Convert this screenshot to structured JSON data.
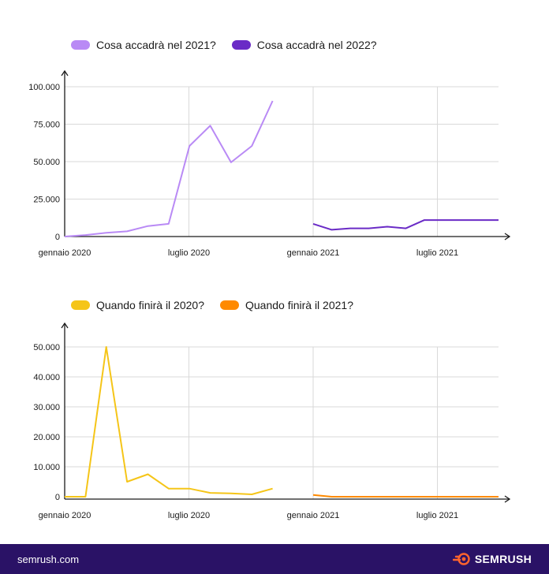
{
  "colors": {
    "series_2021": "#b98af5",
    "series_2022": "#6a2bc6",
    "series_fine2020": "#f5c518",
    "series_fine2021": "#ff8a00",
    "grid": "#d9d9d9",
    "axis": "#1b1b1b",
    "footer_bg": "#2a1266",
    "brand_accent": "#ff642d"
  },
  "footer": {
    "site": "semrush.com",
    "brand": "SEMRUSH",
    "brand_icon": "semrush-flame-icon"
  },
  "chart_data": [
    {
      "type": "line",
      "title": "",
      "xlabel": "",
      "ylabel": "",
      "x_ticks": [
        "gennaio 2020",
        "luglio 2020",
        "gennaio 2021",
        "luglio 2021"
      ],
      "y_ticks": [
        "0",
        "25.000",
        "50.000",
        "75.000",
        "100.000"
      ],
      "ylim": [
        0,
        100000
      ],
      "grid": true,
      "legend_position": "top-left",
      "series": [
        {
          "name": "Cosa accadrà nel 2021?",
          "color": "#b98af5",
          "x": [
            "2020-01",
            "2020-02",
            "2020-03",
            "2020-04",
            "2020-05",
            "2020-06",
            "2020-07",
            "2020-08",
            "2020-09",
            "2020-10",
            "2020-11",
            "2020-12"
          ],
          "values": [
            0,
            1000,
            2500,
            3500,
            7000,
            8500,
            60500,
            74000,
            49500,
            60500,
            90500,
            null
          ]
        },
        {
          "name": "Cosa accadrà nel 2022?",
          "color": "#6a2bc6",
          "x": [
            "2021-01",
            "2021-02",
            "2021-03",
            "2021-04",
            "2021-05",
            "2021-06",
            "2021-07",
            "2021-08",
            "2021-09",
            "2021-10",
            "2021-11"
          ],
          "values": [
            8500,
            4500,
            5500,
            5500,
            6600,
            5500,
            11000,
            11000,
            11000,
            11000,
            11000
          ]
        }
      ]
    },
    {
      "type": "line",
      "title": "",
      "xlabel": "",
      "ylabel": "",
      "x_ticks": [
        "gennaio 2020",
        "luglio 2020",
        "gennaio 2021",
        "luglio 2021"
      ],
      "y_ticks": [
        "0",
        "10.000",
        "20.000",
        "30.000",
        "40.000",
        "50.000"
      ],
      "ylim": [
        0,
        50000
      ],
      "grid": true,
      "legend_position": "top-left",
      "series": [
        {
          "name": "Quando finirà il 2020?",
          "color": "#f5c518",
          "x": [
            "2020-01",
            "2020-02",
            "2020-03",
            "2020-04",
            "2020-05",
            "2020-06",
            "2020-07",
            "2020-08",
            "2020-09",
            "2020-10",
            "2020-11",
            "2020-12"
          ],
          "values": [
            0,
            0,
            50000,
            5000,
            7500,
            2700,
            2700,
            1300,
            1100,
            800,
            2700,
            null
          ]
        },
        {
          "name": "Quando finirà il 2021?",
          "color": "#ff8a00",
          "x": [
            "2021-01",
            "2021-02",
            "2021-03",
            "2021-04",
            "2021-05",
            "2021-06",
            "2021-07",
            "2021-08",
            "2021-09",
            "2021-10",
            "2021-11"
          ],
          "values": [
            600,
            0,
            0,
            0,
            0,
            0,
            0,
            0,
            0,
            0,
            0
          ]
        }
      ]
    }
  ]
}
